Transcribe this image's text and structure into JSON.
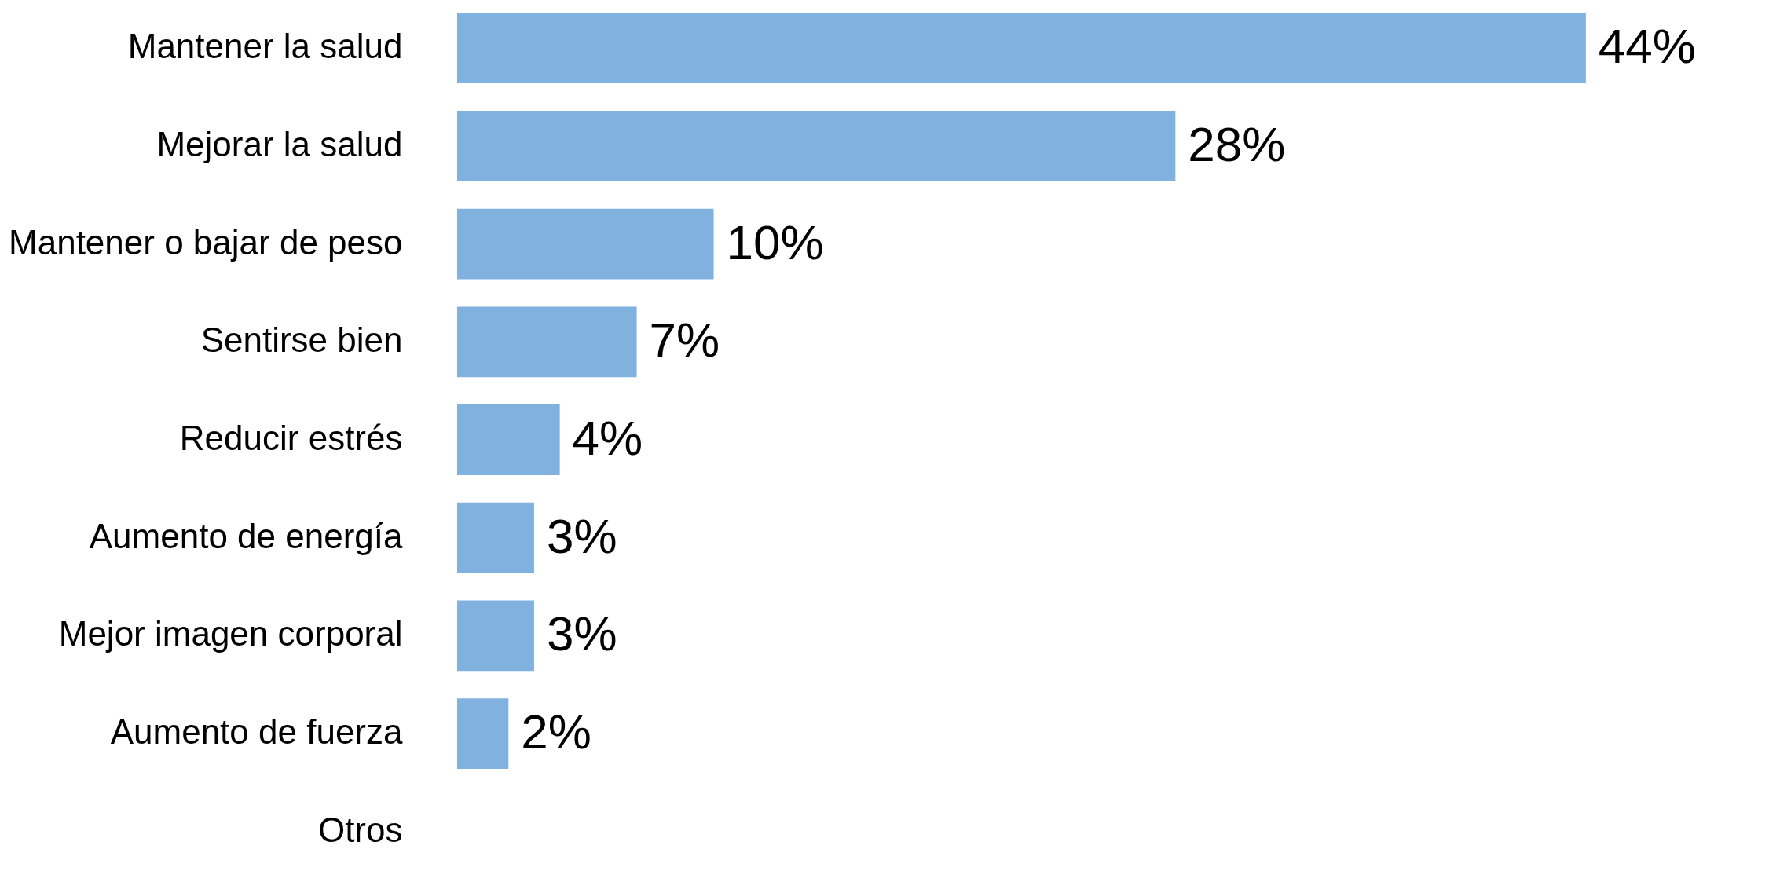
{
  "chart_data": {
    "type": "bar",
    "orientation": "horizontal",
    "categories": [
      "Mantener la salud",
      "Mejorar la salud",
      "Mantener o bajar de peso",
      "Sentirse bien",
      "Reducir estrés",
      "Aumento de energía",
      "Mejor imagen corporal",
      "Aumento de fuerza",
      "Otros"
    ],
    "series": [
      {
        "color": "#80b1df",
        "values": [
          44,
          28,
          10,
          7,
          4,
          3,
          3,
          2,
          null
        ],
        "value_labels": [
          "44%",
          "28%",
          "10%",
          "7%",
          "4%",
          "3%",
          "3%",
          "2%",
          null
        ]
      }
    ],
    "tick_labels": "y"
  }
}
